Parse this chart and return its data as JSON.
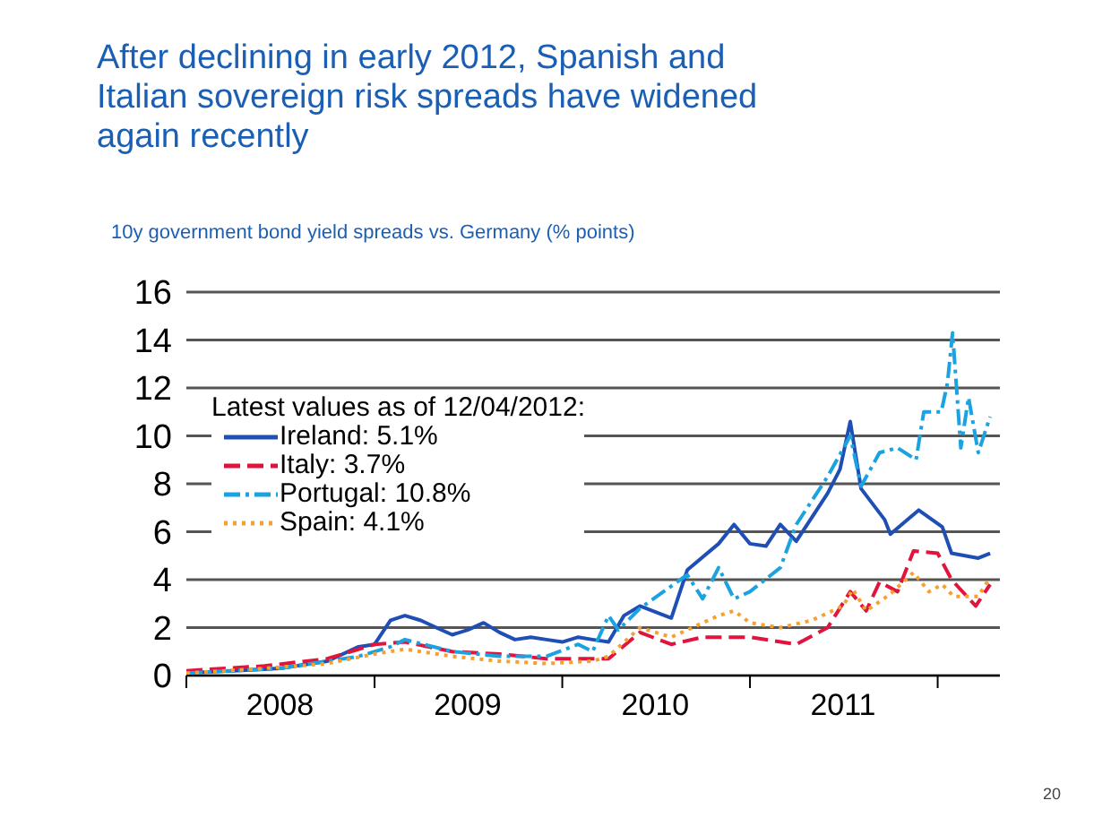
{
  "chart_data": {
    "type": "line",
    "title": "After declining in early 2012, Spanish and Italian sovereign risk spreads have widened again recently",
    "subtitle": "10y government bond yield spreads vs. Germany (% points)",
    "legend_title": "Latest values as of 12/04/2012:",
    "legend": "top left",
    "grid": "y",
    "xlim": [
      "2008-01-01",
      "2012-05-01"
    ],
    "xticks": [
      {
        "value": "2008-01-01",
        "label": null
      },
      {
        "value": "2008-07-01",
        "label": "2008"
      },
      {
        "value": "2009-01-01",
        "label": null
      },
      {
        "value": "2009-07-01",
        "label": "2009"
      },
      {
        "value": "2010-01-01",
        "label": null
      },
      {
        "value": "2010-07-01",
        "label": "2010"
      },
      {
        "value": "2011-01-01",
        "label": null
      },
      {
        "value": "2011-07-01",
        "label": "2011"
      },
      {
        "value": "2012-01-01",
        "label": null
      }
    ],
    "ylim": [
      0,
      16
    ],
    "yticks": [
      0,
      2,
      4,
      6,
      8,
      10,
      12,
      14,
      16
    ],
    "annotations": [
      "20"
    ],
    "series": [
      {
        "name": "Ireland: 5.1%",
        "color": "#1f4fb5",
        "line_style": "solid",
        "x": [
          "2008-01",
          "2008-04",
          "2008-07",
          "2008-10",
          "2008-12",
          "2009-01",
          "2009-02",
          "2009-03",
          "2009-04",
          "2009-05",
          "2009-06",
          "2009-07",
          "2009-08",
          "2009-09",
          "2009-10",
          "2009-11",
          "2009-12",
          "2010-01",
          "2010-02",
          "2010-03",
          "2010-04",
          "2010-05",
          "2010-06",
          "2010-08",
          "2010-09",
          "2010-11",
          "2010-12",
          "2011-01",
          "2011-02",
          "2011-03",
          "2011-04",
          "2011-06",
          "2011-06-25",
          "2011-07-15",
          "2011-08-05",
          "2011-09-20",
          "2011-10-01",
          "2011-11-25",
          "2012-01-10",
          "2012-01-28",
          "2012-03-20",
          "2012-04-12"
        ],
        "values": [
          0.1,
          0.2,
          0.3,
          0.6,
          1.2,
          1.3,
          2.3,
          2.5,
          2.3,
          2.0,
          1.7,
          1.9,
          2.2,
          1.8,
          1.5,
          1.6,
          1.5,
          1.4,
          1.6,
          1.5,
          1.4,
          2.5,
          2.9,
          2.4,
          4.4,
          5.5,
          6.3,
          5.5,
          5.4,
          6.3,
          5.6,
          7.6,
          8.6,
          10.6,
          7.8,
          6.5,
          5.9,
          6.9,
          6.2,
          5.1,
          4.9,
          5.1
        ]
      },
      {
        "name": "Italy: 3.7%",
        "color": "#e0143c",
        "line_style": "dashed",
        "x": [
          "2008-01",
          "2008-06",
          "2008-10",
          "2009-01",
          "2009-03",
          "2009-06",
          "2009-09",
          "2009-12",
          "2010-03",
          "2010-04",
          "2010-06",
          "2010-08",
          "2010-10",
          "2011-01",
          "2011-04",
          "2011-06",
          "2011-07-15",
          "2011-08-15",
          "2011-09-10",
          "2011-10-15",
          "2011-11-15",
          "2012-01-01",
          "2012-01-28",
          "2012-03-15",
          "2012-04-12"
        ],
        "values": [
          0.2,
          0.4,
          0.7,
          1.3,
          1.4,
          1.0,
          0.9,
          0.7,
          0.7,
          0.7,
          1.8,
          1.3,
          1.6,
          1.6,
          1.3,
          2.0,
          3.5,
          2.7,
          3.9,
          3.5,
          5.2,
          5.1,
          4.0,
          2.9,
          3.8
        ]
      },
      {
        "name": "Portugal: 10.8%",
        "color": "#1aa3e0",
        "line_style": "dashdot",
        "x": [
          "2008-01",
          "2008-07",
          "2008-12",
          "2009-02",
          "2009-03",
          "2009-06",
          "2009-09",
          "2009-12",
          "2010-02",
          "2010-03",
          "2010-04",
          "2010-04-20",
          "2010-06",
          "2010-09",
          "2010-10",
          "2010-11",
          "2010-12",
          "2011-01",
          "2011-03",
          "2011-04",
          "2011-06",
          "2011-07-15",
          "2011-08-05",
          "2011-09-10",
          "2011-10-15",
          "2011-11-20",
          "2011-12-05",
          "2012-01-08",
          "2012-01-20",
          "2012-01-30",
          "2012-02-15",
          "2012-03-01",
          "2012-03-20",
          "2012-04-12"
        ],
        "values": [
          0.1,
          0.3,
          0.8,
          1.2,
          1.5,
          1.0,
          0.8,
          0.8,
          1.3,
          1.0,
          2.5,
          1.9,
          2.8,
          4.2,
          3.2,
          4.5,
          3.2,
          3.5,
          4.5,
          6.3,
          8.3,
          10.0,
          7.9,
          9.3,
          9.5,
          9.0,
          11.0,
          11.0,
          12.2,
          14.3,
          9.5,
          11.6,
          9.3,
          10.8
        ]
      },
      {
        "name": "Spain: 4.1%",
        "color": "#f5a030",
        "line_style": "dotted",
        "x": [
          "2008-01",
          "2008-06",
          "2008-10",
          "2009-01",
          "2009-03",
          "2009-06",
          "2009-09",
          "2009-12",
          "2010-03",
          "2010-04",
          "2010-06",
          "2010-08",
          "2010-11",
          "2010-12",
          "2011-01",
          "2011-03",
          "2011-05",
          "2011-07",
          "2011-07-20",
          "2011-08-15",
          "2011-10-01",
          "2011-11-15",
          "2011-12-15",
          "2012-01-10",
          "2012-02-01",
          "2012-03-20",
          "2012-04-12"
        ],
        "values": [
          0.1,
          0.3,
          0.5,
          0.9,
          1.1,
          0.8,
          0.6,
          0.5,
          0.6,
          0.8,
          2.0,
          1.6,
          2.5,
          2.7,
          2.2,
          2.0,
          2.3,
          2.9,
          3.6,
          2.7,
          3.4,
          4.3,
          3.5,
          3.8,
          3.3,
          3.3,
          4.1
        ]
      }
    ]
  }
}
